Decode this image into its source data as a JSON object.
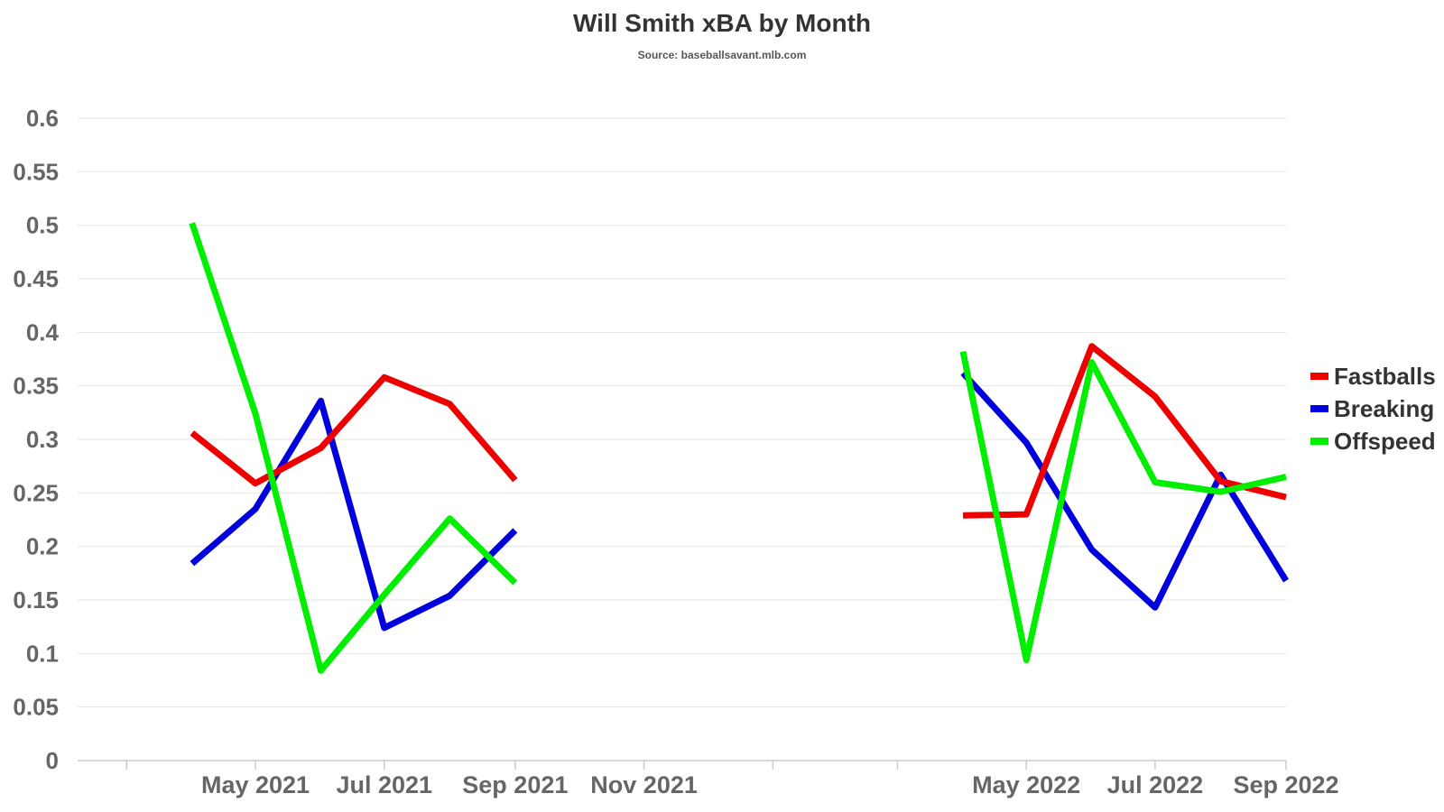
{
  "chart_data": {
    "type": "line",
    "title": "Will Smith xBA by Month",
    "subtitle": "Source: baseballsavant.mlb.com",
    "xlabel": "",
    "ylabel": "",
    "ylim": [
      0,
      0.6
    ],
    "yticks": [
      {
        "value": 0,
        "label": "0"
      },
      {
        "value": 0.05,
        "label": "0.05"
      },
      {
        "value": 0.1,
        "label": "0.1"
      },
      {
        "value": 0.15,
        "label": "0.15"
      },
      {
        "value": 0.2,
        "label": "0.2"
      },
      {
        "value": 0.25,
        "label": "0.25"
      },
      {
        "value": 0.3,
        "label": "0.3"
      },
      {
        "value": 0.35,
        "label": "0.35"
      },
      {
        "value": 0.4,
        "label": "0.4"
      },
      {
        "value": 0.45,
        "label": "0.45"
      },
      {
        "value": 0.5,
        "label": "0.5"
      },
      {
        "value": 0.55,
        "label": "0.55"
      },
      {
        "value": 0.6,
        "label": "0.6"
      }
    ],
    "xlim": [
      "2021-02-15",
      "2022-09-01"
    ],
    "xticks": [
      {
        "value": "2021-05-01",
        "label": "May 2021"
      },
      {
        "value": "2021-07-01",
        "label": "Jul 2021"
      },
      {
        "value": "2021-09-01",
        "label": "Sep 2021"
      },
      {
        "value": "2021-11-01",
        "label": "Nov 2021"
      },
      {
        "value": "2022-05-01",
        "label": "May 2022"
      },
      {
        "value": "2022-07-01",
        "label": "Jul 2022"
      },
      {
        "value": "2022-09-01",
        "label": "Sep 2022"
      }
    ],
    "minor_ticks": [
      "2021-03-01",
      "2022-01-01",
      "2022-03-01"
    ],
    "grid": true,
    "legend_position": "right",
    "series": [
      {
        "name": "Fastballs",
        "color": "#ee0000",
        "points": [
          {
            "x": "2021-04-01",
            "y": 0.306
          },
          {
            "x": "2021-05-01",
            "y": 0.259
          },
          {
            "x": "2021-06-01",
            "y": 0.292
          },
          {
            "x": "2021-07-01",
            "y": 0.358
          },
          {
            "x": "2021-08-01",
            "y": 0.333
          },
          {
            "x": "2021-09-01",
            "y": 0.262
          },
          {
            "x": "2022-04-01",
            "y": 0.229
          },
          {
            "x": "2022-05-01",
            "y": 0.23
          },
          {
            "x": "2022-06-01",
            "y": 0.387
          },
          {
            "x": "2022-07-01",
            "y": 0.34
          },
          {
            "x": "2022-08-01",
            "y": 0.261
          },
          {
            "x": "2022-09-01",
            "y": 0.246
          }
        ]
      },
      {
        "name": "Breaking",
        "color": "#0000dd",
        "points": [
          {
            "x": "2021-04-01",
            "y": 0.184
          },
          {
            "x": "2021-05-01",
            "y": 0.235
          },
          {
            "x": "2021-06-01",
            "y": 0.336
          },
          {
            "x": "2021-07-01",
            "y": 0.124
          },
          {
            "x": "2021-08-01",
            "y": 0.154
          },
          {
            "x": "2021-09-01",
            "y": 0.215
          },
          {
            "x": "2022-04-01",
            "y": 0.362
          },
          {
            "x": "2022-05-01",
            "y": 0.297
          },
          {
            "x": "2022-06-01",
            "y": 0.197
          },
          {
            "x": "2022-07-01",
            "y": 0.143
          },
          {
            "x": "2022-08-01",
            "y": 0.267
          },
          {
            "x": "2022-09-01",
            "y": 0.168
          }
        ]
      },
      {
        "name": "Offspeed",
        "color": "#00ee00",
        "points": [
          {
            "x": "2021-04-01",
            "y": 0.502
          },
          {
            "x": "2021-05-01",
            "y": 0.324
          },
          {
            "x": "2021-06-01",
            "y": 0.084
          },
          {
            "x": "2021-07-01",
            "y": 0.155
          },
          {
            "x": "2021-08-01",
            "y": 0.226
          },
          {
            "x": "2021-09-01",
            "y": 0.166
          },
          {
            "x": "2022-04-01",
            "y": 0.382
          },
          {
            "x": "2022-05-01",
            "y": 0.094
          },
          {
            "x": "2022-06-01",
            "y": 0.372
          },
          {
            "x": "2022-07-01",
            "y": 0.26
          },
          {
            "x": "2022-08-01",
            "y": 0.251
          },
          {
            "x": "2022-09-01",
            "y": 0.265
          }
        ]
      }
    ]
  }
}
